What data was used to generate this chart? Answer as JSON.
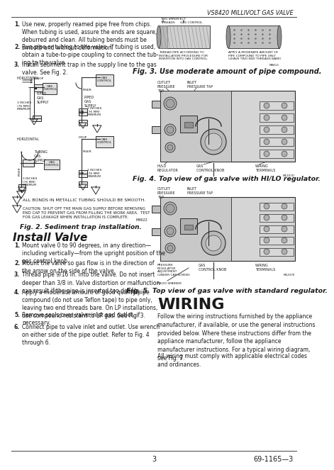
{
  "page_title": "VS8420 MILLIVOLT GAS VALVE",
  "page_num": "3",
  "page_ref": "69-1165—3",
  "items_1_3": [
    "Use new, properly reamed pipe free from chips.\nWhen tubing is used, assure the ends are square,\ndeburred and clean. All tubing bends must be\nsmooth and without deformation.",
    "Run pipe or tubing to the valve. If tubing is used,\nobtain a tube-to-pipe coupling to connect the tub-\ning to the valve.",
    "Install sediment trap in the supply line to the gas\nvalve. See Fig. 2."
  ],
  "warning_text": "ALL BONDS IN METALLIC TUBING SHOULD BE SMOOTH.",
  "caution_text": "CAUTION: SHUT OFF THE MAIN GAS SUPPLY BEFORE REMOVING\nEND CAP TO PREVENT GAS FROM FILLING THE WORK AREA.  TEST\nFOR GAS LEAKAGE WHEN INSTALLATION IS COMPLETE.",
  "caution_ref": "M4622",
  "fig2_caption": "Fig. 2. Sediment trap installation.",
  "install_valve_title": "Install Valve",
  "install_items": [
    "Mount valve 0 to 90 degrees, in any direction—\nincluding vertically—from the upright position of the\ngas control knob.",
    "Mount the valve so gas flow is in the direction of\nthe arrow on the side of the valve.",
    "Thread pipe 9/16 in. into the valve. Do not insert\ndeeper than 3/8 in. Valve distortion or malfunction\ncan result if the pipe is inserted too deeply.",
    "Apply a moderate amount of good quality pipe\ncompound (do not use Teflon tape) to pipe only,\nleaving two end threads bare. On LP installations,\nuse compound resistant to LP gas. See Fig. 3.",
    "Remove seals over valve inlet and outlet, if\nnecessary.",
    "Connect pipe to valve inlet and outlet. Use wrench\non either side of the pipe outlet. Refer to Fig. 4\nthrough 6."
  ],
  "fig3_caption": "Fig. 3. Use moderate amount of pipe compound.",
  "fig4_caption": "Fig. 4. Top view of gas valve with HI/LO regulator.",
  "fig5_caption": "Fig. 5. Top view of gas valve with standard regulator.",
  "wiring_title": "WIRING",
  "wiring_para1": "Follow the wiring instructions furnished by the appliance\nmanufacturer, if available, or use the general instructions\nprovided below. Where these instructions differ from the\nappliance manufacturer, follow the appliance\nmanufacturer instructions. For a typical wiring diagram,\nsee Fig. 7.",
  "wiring_para2": "All wiring must comply with applicable electrical codes\nand ordinances."
}
